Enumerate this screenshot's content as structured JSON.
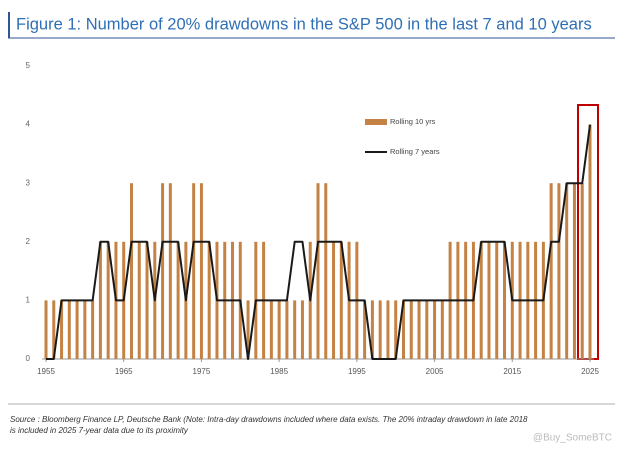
{
  "chart_data": {
    "type": "bar_line",
    "title": "Figure 1: Number of 20% drawdowns in the S&P 500 in the last 7 and 10 years",
    "x": [
      1955,
      1956,
      1957,
      1958,
      1959,
      1960,
      1961,
      1962,
      1963,
      1964,
      1965,
      1966,
      1967,
      1968,
      1969,
      1970,
      1971,
      1972,
      1973,
      1974,
      1975,
      1976,
      1977,
      1978,
      1979,
      1980,
      1981,
      1982,
      1983,
      1984,
      1985,
      1986,
      1987,
      1988,
      1989,
      1990,
      1991,
      1992,
      1993,
      1994,
      1995,
      1996,
      1997,
      1998,
      1999,
      2000,
      2001,
      2002,
      2003,
      2004,
      2005,
      2006,
      2007,
      2008,
      2009,
      2010,
      2011,
      2012,
      2013,
      2014,
      2015,
      2016,
      2017,
      2018,
      2019,
      2020,
      2021,
      2022,
      2023,
      2024,
      2025
    ],
    "series": [
      {
        "name": "Rolling 10 yrs",
        "color": "#c48345",
        "kind": "bar",
        "values": [
          1,
          1,
          1,
          1,
          1,
          1,
          1,
          2,
          2,
          2,
          2,
          3,
          2,
          2,
          2,
          3,
          3,
          2,
          2,
          3,
          3,
          2,
          2,
          2,
          2,
          2,
          1,
          2,
          2,
          1,
          1,
          1,
          1,
          1,
          2,
          3,
          3,
          2,
          2,
          2,
          2,
          1,
          1,
          1,
          1,
          1,
          1,
          1,
          1,
          1,
          1,
          1,
          2,
          2,
          2,
          2,
          2,
          2,
          2,
          2,
          2,
          2,
          2,
          2,
          2,
          3,
          3,
          3,
          3,
          3,
          4
        ]
      },
      {
        "name": "Rolling 7 years",
        "color": "#1a1a1a",
        "kind": "line",
        "values": [
          0,
          0,
          1,
          1,
          1,
          1,
          1,
          2,
          2,
          1,
          1,
          2,
          2,
          2,
          1,
          2,
          2,
          2,
          1,
          2,
          2,
          2,
          1,
          1,
          1,
          1,
          0,
          1,
          1,
          1,
          1,
          1,
          2,
          2,
          1,
          2,
          2,
          2,
          2,
          1,
          1,
          1,
          0,
          0,
          0,
          0,
          1,
          1,
          1,
          1,
          1,
          1,
          1,
          1,
          1,
          1,
          2,
          2,
          2,
          2,
          1,
          1,
          1,
          1,
          1,
          2,
          2,
          3,
          3,
          3,
          4
        ]
      }
    ],
    "xlim": [
      1955,
      2025
    ],
    "xticks": [
      1955,
      1965,
      1975,
      1985,
      1995,
      2005,
      2015,
      2025
    ],
    "ylim": [
      0,
      5
    ],
    "yticks": [
      0,
      1,
      2,
      3,
      4,
      5
    ],
    "source": [
      "Source : Bloomberg Finance LP, Deutsche Bank (Note: Intra-day drawdowns included where data exists. The 20% intraday drawdown in late 2018",
      "is included in 2025 7-year data due to its proximity"
    ],
    "watermark": "@Buy_SomeBTC"
  }
}
